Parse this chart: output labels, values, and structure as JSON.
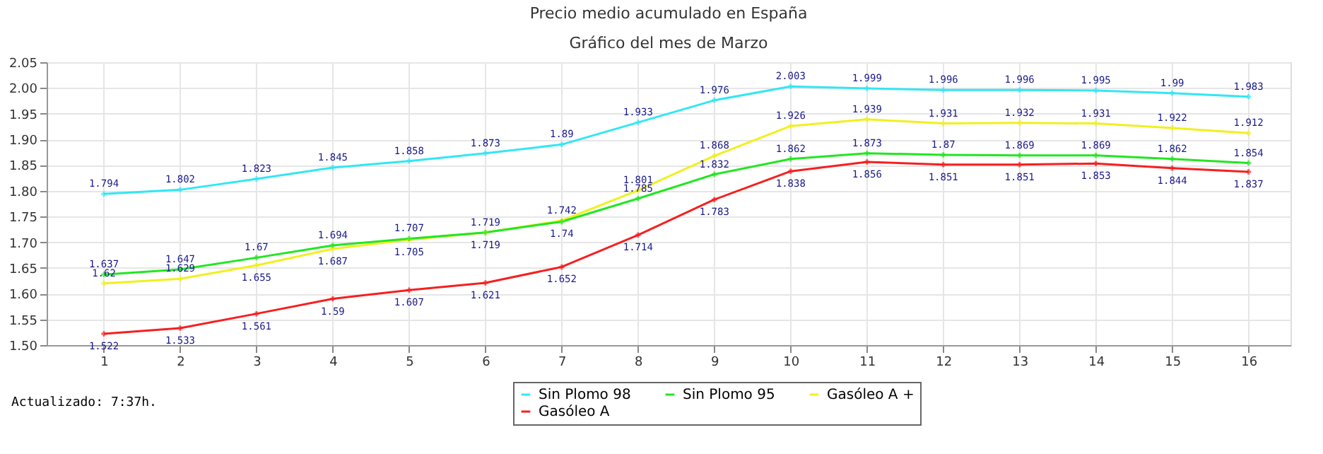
{
  "chart_data": {
    "type": "line",
    "title": "Precio medio acumulado en España",
    "subtitle": "Gráfico del mes de Marzo",
    "x": [
      1,
      2,
      3,
      4,
      5,
      6,
      7,
      8,
      9,
      10,
      11,
      12,
      13,
      14,
      15,
      16
    ],
    "series": [
      {
        "name": "Sin Plomo 98",
        "color": "#33e6f5",
        "values": [
          1.794,
          1.802,
          1.823,
          1.845,
          1.858,
          1.873,
          1.89,
          1.933,
          1.976,
          2.003,
          1.999,
          1.996,
          1.996,
          1.995,
          1.99,
          1.983
        ]
      },
      {
        "name": "Gasóleo A +",
        "color": "#f0f020",
        "values": [
          1.62,
          1.629,
          1.655,
          1.687,
          1.705,
          1.719,
          1.742,
          1.801,
          1.868,
          1.926,
          1.939,
          1.931,
          1.932,
          1.931,
          1.922,
          1.912
        ]
      },
      {
        "name": "Sin Plomo 95",
        "color": "#22e622",
        "values": [
          1.637,
          1.647,
          1.67,
          1.694,
          1.707,
          1.719,
          1.74,
          1.785,
          1.832,
          1.862,
          1.873,
          1.87,
          1.869,
          1.869,
          1.862,
          1.854
        ]
      },
      {
        "name": "Gasóleo A",
        "color": "#f52020",
        "values": [
          1.522,
          1.533,
          1.561,
          1.59,
          1.607,
          1.621,
          1.652,
          1.714,
          1.783,
          1.838,
          1.856,
          1.851,
          1.851,
          1.853,
          1.844,
          1.837
        ]
      }
    ],
    "xlim": [
      0.25,
      16.55
    ],
    "xticks": [
      1,
      2,
      3,
      4,
      5,
      6,
      7,
      8,
      9,
      10,
      11,
      12,
      13,
      14,
      15,
      16
    ],
    "ylim": [
      1.5,
      2.05
    ],
    "yticks": [
      {
        "value": 1.5,
        "label": "1.50"
      },
      {
        "value": 1.55,
        "label": "1.55"
      },
      {
        "value": 1.6,
        "label": "1.60"
      },
      {
        "value": 1.65,
        "label": "1.65"
      },
      {
        "value": 1.7,
        "label": "1.70"
      },
      {
        "value": 1.75,
        "label": "1.75"
      },
      {
        "value": 1.8,
        "label": "1.80"
      },
      {
        "value": 1.85,
        "label": "1.85"
      },
      {
        "value": 1.9,
        "label": "1.90"
      },
      {
        "value": 1.95,
        "label": "1.95"
      },
      {
        "value": 2.0,
        "label": "2.00"
      },
      {
        "value": 2.05,
        "label": "2.05"
      }
    ],
    "grid": true,
    "legend": "bottom",
    "marker": "cross",
    "line_style": "solid",
    "data_labels": true,
    "annotations": [
      "Actualizado: 7:37h."
    ]
  }
}
